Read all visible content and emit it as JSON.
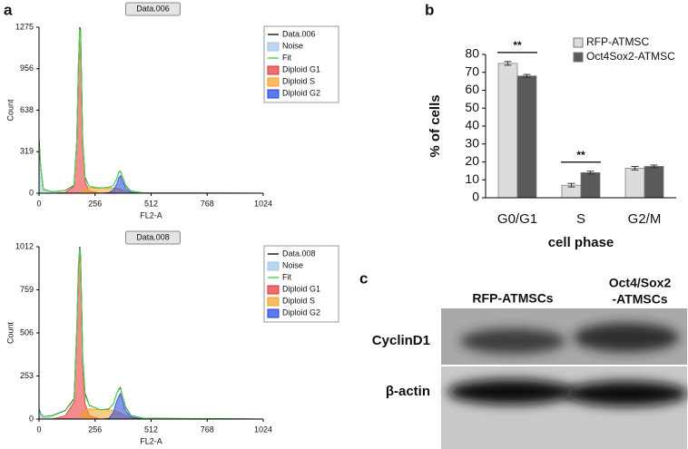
{
  "panel_labels": [
    "a",
    "b",
    "c"
  ],
  "chart_data": [
    {
      "type": "flow",
      "title": "Data.006",
      "xlabel": "FL2-A",
      "ylabel": "Count",
      "xlim": [
        0,
        1024
      ],
      "xticks": [
        0,
        256,
        512,
        768,
        1024
      ],
      "ylim": [
        0,
        1275
      ],
      "yticks": [
        0,
        319,
        638,
        956,
        1275
      ],
      "x": [
        0,
        8,
        20,
        60,
        120,
        160,
        172,
        180,
        186,
        190,
        194,
        200,
        210,
        230,
        280,
        320,
        340,
        355,
        365,
        372,
        380,
        395,
        420,
        480,
        1024
      ],
      "series": [
        {
          "name": "Data.006",
          "style": "line",
          "color": "#222222",
          "values": [
            420,
            200,
            30,
            12,
            20,
            60,
            400,
            1000,
            1275,
            1250,
            900,
            400,
            120,
            50,
            40,
            45,
            60,
            110,
            160,
            170,
            130,
            60,
            15,
            3,
            0
          ]
        },
        {
          "name": "Noise",
          "style": "area",
          "color": "#9fc5e8",
          "values": [
            400,
            190,
            25,
            8,
            4,
            3,
            2,
            2,
            2,
            2,
            2,
            2,
            2,
            2,
            2,
            2,
            2,
            2,
            2,
            2,
            2,
            2,
            1,
            0,
            0
          ]
        },
        {
          "name": "Fit",
          "style": "line",
          "color": "#4dde4d",
          "values": [
            400,
            195,
            28,
            12,
            18,
            55,
            390,
            980,
            1260,
            1240,
            880,
            390,
            110,
            52,
            40,
            45,
            60,
            110,
            165,
            170,
            125,
            55,
            14,
            3,
            0
          ]
        },
        {
          "name": "Diploid G1",
          "style": "area",
          "color": "#e53030",
          "values": [
            0,
            0,
            0,
            0,
            5,
            50,
            380,
            970,
            1250,
            1230,
            870,
            370,
            90,
            15,
            0,
            0,
            0,
            0,
            0,
            0,
            0,
            0,
            0,
            0,
            0
          ]
        },
        {
          "name": "Diploid S",
          "style": "area",
          "color": "#f5a020",
          "values": [
            0,
            0,
            0,
            0,
            0,
            0,
            0,
            0,
            0,
            5,
            10,
            20,
            30,
            38,
            40,
            42,
            40,
            38,
            35,
            30,
            25,
            15,
            5,
            0,
            0
          ]
        },
        {
          "name": "Diploid G2",
          "style": "area",
          "color": "#2040e0",
          "values": [
            0,
            0,
            0,
            0,
            0,
            0,
            0,
            0,
            0,
            0,
            0,
            0,
            0,
            0,
            0,
            5,
            25,
            70,
            120,
            135,
            100,
            40,
            8,
            0,
            0
          ]
        }
      ]
    },
    {
      "type": "flow",
      "title": "Data.008",
      "xlabel": "FL2-A",
      "ylabel": "Count",
      "xlim": [
        0,
        1024
      ],
      "xticks": [
        0,
        256,
        512,
        768,
        1024
      ],
      "ylim": [
        0,
        1012
      ],
      "yticks": [
        0,
        253,
        506,
        759,
        1012
      ],
      "x": [
        0,
        8,
        20,
        60,
        120,
        160,
        172,
        180,
        186,
        190,
        194,
        200,
        210,
        230,
        280,
        320,
        340,
        355,
        365,
        372,
        380,
        395,
        420,
        480,
        1024
      ],
      "series": [
        {
          "name": "Data.008",
          "style": "line",
          "color": "#222222",
          "values": [
            60,
            30,
            15,
            20,
            50,
            120,
            520,
            900,
            1012,
            960,
            720,
            360,
            150,
            80,
            55,
            60,
            90,
            150,
            175,
            185,
            140,
            70,
            20,
            5,
            0
          ]
        },
        {
          "name": "Noise",
          "style": "area",
          "color": "#9fc5e8",
          "values": [
            55,
            25,
            10,
            6,
            4,
            3,
            2,
            2,
            2,
            2,
            2,
            2,
            2,
            2,
            2,
            2,
            2,
            2,
            2,
            2,
            2,
            2,
            1,
            0,
            0
          ]
        },
        {
          "name": "Fit",
          "style": "line",
          "color": "#4dde4d",
          "values": [
            55,
            28,
            14,
            18,
            48,
            115,
            500,
            890,
            1000,
            950,
            710,
            350,
            140,
            78,
            55,
            62,
            90,
            150,
            172,
            180,
            135,
            65,
            18,
            4,
            0
          ]
        },
        {
          "name": "Diploid G1",
          "style": "area",
          "color": "#e53030",
          "values": [
            0,
            0,
            0,
            0,
            20,
            100,
            480,
            870,
            980,
            920,
            680,
            310,
            90,
            20,
            0,
            0,
            0,
            0,
            0,
            0,
            0,
            0,
            0,
            0,
            0
          ]
        },
        {
          "name": "Diploid S",
          "style": "area",
          "color": "#f5a020",
          "values": [
            0,
            0,
            0,
            0,
            0,
            0,
            0,
            0,
            0,
            10,
            20,
            35,
            50,
            60,
            55,
            55,
            50,
            45,
            40,
            35,
            30,
            20,
            8,
            0,
            0
          ]
        },
        {
          "name": "Diploid G2",
          "style": "area",
          "color": "#2040e0",
          "values": [
            0,
            0,
            0,
            0,
            0,
            0,
            0,
            0,
            0,
            0,
            0,
            0,
            0,
            0,
            0,
            5,
            40,
            105,
            135,
            150,
            110,
            50,
            12,
            0,
            0
          ]
        }
      ]
    },
    {
      "type": "bar",
      "xlabel": "cell phase",
      "ylabel": "% of cells",
      "categories": [
        "G0/G1",
        "S",
        "G2/M"
      ],
      "ylim": [
        0,
        80
      ],
      "yticks": [
        0,
        10,
        20,
        30,
        40,
        50,
        60,
        70,
        80
      ],
      "series": [
        {
          "name": "RFP-ATMSC",
          "color": "#dcdcdc",
          "values": [
            75,
            7,
            16.5
          ],
          "errors": [
            1,
            1,
            1
          ]
        },
        {
          "name": "Oct4Sox2-ATMSC",
          "color": "#5a5a5a",
          "values": [
            68,
            14,
            17.5
          ],
          "errors": [
            0.8,
            0.8,
            0.7
          ]
        }
      ],
      "annotations": [
        "**",
        "**"
      ]
    }
  ],
  "blot": {
    "columns": [
      "RFP-ATMSCs",
      "Oct4/Sox2",
      "-ATMSCs"
    ],
    "rows": [
      "CyclinD1",
      "β-actin"
    ]
  }
}
